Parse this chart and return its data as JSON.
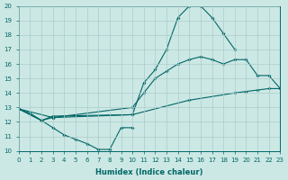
{
  "xlabel": "Humidex (Indice chaleur)",
  "bg_color": "#cce8e4",
  "line_color": "#006666",
  "grid_color": "#aacccc",
  "ylim": [
    10,
    20
  ],
  "xlim": [
    0,
    23
  ],
  "line1_x": [
    0,
    1,
    2,
    3,
    4,
    5,
    6,
    7,
    8,
    9,
    10
  ],
  "line1_y": [
    12.9,
    12.6,
    12.1,
    11.6,
    11.1,
    10.8,
    10.5,
    10.1,
    10.1,
    11.6,
    11.6
  ],
  "line2_x": [
    0,
    2,
    3,
    10,
    15,
    19,
    20,
    21,
    22,
    23
  ],
  "line2_y": [
    12.9,
    12.1,
    12.4,
    12.5,
    13.5,
    14.0,
    14.1,
    14.2,
    14.3,
    14.3
  ],
  "line3_x": [
    0,
    2,
    3,
    10,
    11,
    12,
    13,
    14,
    15,
    16,
    17,
    18,
    19,
    20,
    21,
    22,
    23
  ],
  "line3_y": [
    12.9,
    12.1,
    12.3,
    13.0,
    14.0,
    15.0,
    15.5,
    16.0,
    16.3,
    16.5,
    16.3,
    16.0,
    16.3,
    16.3,
    15.2,
    15.2,
    14.3
  ],
  "line4_x": [
    0,
    3,
    10,
    11,
    12,
    13,
    14,
    15,
    16,
    17,
    18,
    19
  ],
  "line4_y": [
    12.9,
    12.3,
    12.5,
    14.7,
    15.6,
    17.0,
    19.2,
    20.0,
    20.0,
    19.2,
    18.1,
    17.0
  ]
}
